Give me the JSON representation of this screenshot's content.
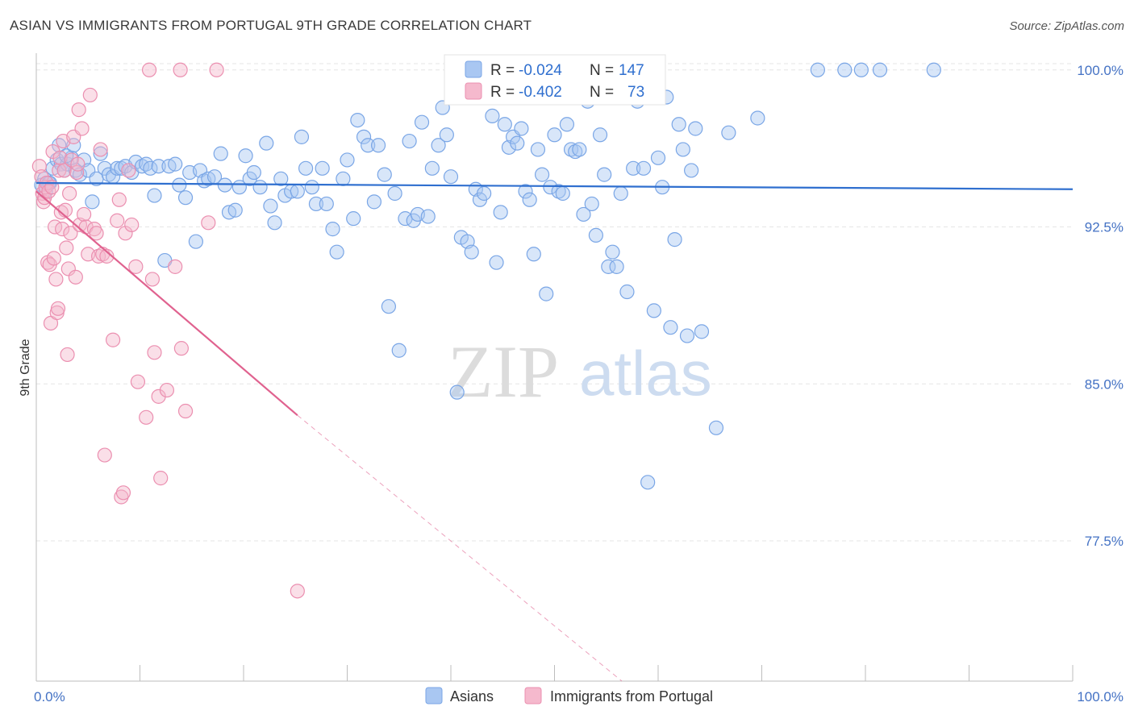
{
  "title": "ASIAN VS IMMIGRANTS FROM PORTUGAL 9TH GRADE CORRELATION CHART",
  "source": "Source: ZipAtlas.com",
  "watermark": {
    "zip": "ZIP",
    "atlas": "atlas"
  },
  "chart_data": {
    "type": "scatter",
    "ylabel": "9th Grade",
    "xlim": [
      0,
      100
    ],
    "ylim": [
      70.8,
      100.8
    ],
    "x_tick_labels": [
      "0.0%",
      "100.0%"
    ],
    "y_ticks": [
      {
        "value": 100.0,
        "label": "100.0%"
      },
      {
        "value": 92.5,
        "label": "92.5%"
      },
      {
        "value": 85.0,
        "label": "85.0%"
      },
      {
        "value": 77.5,
        "label": "77.5%"
      }
    ],
    "grid": true,
    "legend": {
      "placement": "top-center",
      "rows": [
        {
          "r_label": "R = ",
          "r_value": "-0.024",
          "n_label": "N = ",
          "n_value": "147"
        },
        {
          "r_label": "R = ",
          "r_value": "-0.402",
          "n_label": "N = ",
          "n_value": "73"
        }
      ]
    },
    "series": [
      {
        "name": "Asians",
        "color": "#7aa6e6",
        "fill": "#a9c7f2",
        "line_color": "#2f6fcf",
        "trend": {
          "x": [
            0,
            100
          ],
          "y": [
            94.6,
            94.3
          ]
        },
        "points": [
          [
            0.5,
            94.5
          ],
          [
            0.8,
            94.8
          ],
          [
            1.2,
            94.6
          ],
          [
            1.6,
            95.3
          ],
          [
            2.0,
            95.7
          ],
          [
            2.4,
            95.5
          ],
          [
            2.7,
            95.2
          ],
          [
            3.0,
            95.5
          ],
          [
            3.4,
            95.8
          ],
          [
            3.8,
            95.2
          ],
          [
            4.2,
            95.0
          ],
          [
            4.6,
            95.7
          ],
          [
            5.0,
            95.2
          ],
          [
            5.4,
            93.7
          ],
          [
            5.8,
            94.8
          ],
          [
            6.2,
            96.0
          ],
          [
            6.6,
            95.3
          ],
          [
            7.0,
            95.0
          ],
          [
            7.4,
            94.9
          ],
          [
            7.8,
            95.3
          ],
          [
            8.2,
            95.3
          ],
          [
            8.6,
            95.4
          ],
          [
            9.2,
            95.1
          ],
          [
            9.6,
            95.6
          ],
          [
            10.2,
            95.4
          ],
          [
            10.6,
            95.5
          ],
          [
            11.0,
            95.3
          ],
          [
            11.4,
            94.0
          ],
          [
            11.8,
            95.4
          ],
          [
            12.4,
            90.9
          ],
          [
            12.8,
            95.4
          ],
          [
            13.4,
            95.5
          ],
          [
            13.8,
            94.5
          ],
          [
            14.4,
            93.9
          ],
          [
            14.8,
            95.1
          ],
          [
            15.4,
            91.8
          ],
          [
            15.8,
            95.2
          ],
          [
            16.2,
            94.7
          ],
          [
            16.6,
            94.8
          ],
          [
            17.2,
            94.9
          ],
          [
            17.8,
            96.0
          ],
          [
            18.2,
            94.5
          ],
          [
            18.6,
            93.2
          ],
          [
            19.2,
            93.3
          ],
          [
            19.6,
            94.4
          ],
          [
            20.2,
            95.9
          ],
          [
            20.6,
            94.8
          ],
          [
            21.0,
            95.1
          ],
          [
            21.6,
            94.4
          ],
          [
            22.2,
            96.5
          ],
          [
            22.6,
            93.5
          ],
          [
            23.0,
            92.7
          ],
          [
            23.6,
            94.8
          ],
          [
            24.0,
            94.0
          ],
          [
            24.6,
            94.2
          ],
          [
            25.2,
            94.2
          ],
          [
            25.6,
            96.8
          ],
          [
            26.0,
            95.3
          ],
          [
            26.6,
            94.4
          ],
          [
            27.0,
            93.6
          ],
          [
            27.6,
            95.3
          ],
          [
            28.0,
            93.6
          ],
          [
            28.6,
            92.4
          ],
          [
            29.0,
            91.3
          ],
          [
            29.6,
            94.8
          ],
          [
            30.0,
            95.7
          ],
          [
            30.6,
            92.9
          ],
          [
            31.0,
            97.6
          ],
          [
            31.6,
            96.8
          ],
          [
            32.0,
            96.4
          ],
          [
            32.6,
            93.7
          ],
          [
            33.0,
            96.4
          ],
          [
            33.6,
            95.0
          ],
          [
            34.0,
            88.7
          ],
          [
            34.6,
            94.1
          ],
          [
            35.0,
            86.6
          ],
          [
            35.6,
            92.9
          ],
          [
            36.0,
            96.6
          ],
          [
            36.4,
            92.8
          ],
          [
            36.8,
            93.1
          ],
          [
            37.2,
            97.5
          ],
          [
            37.8,
            93.0
          ],
          [
            38.2,
            95.3
          ],
          [
            38.8,
            96.4
          ],
          [
            39.2,
            98.2
          ],
          [
            39.6,
            96.9
          ],
          [
            40.0,
            94.9
          ],
          [
            40.6,
            84.6
          ],
          [
            41.0,
            92.0
          ],
          [
            41.6,
            91.8
          ],
          [
            42.0,
            91.3
          ],
          [
            42.4,
            94.3
          ],
          [
            42.8,
            93.8
          ],
          [
            43.2,
            94.1
          ],
          [
            43.6,
            98.7
          ],
          [
            44.0,
            97.8
          ],
          [
            44.4,
            90.8
          ],
          [
            44.8,
            93.2
          ],
          [
            45.2,
            97.4
          ],
          [
            45.6,
            96.3
          ],
          [
            46.0,
            96.8
          ],
          [
            46.4,
            96.5
          ],
          [
            46.8,
            97.2
          ],
          [
            47.2,
            94.2
          ],
          [
            47.6,
            93.8
          ],
          [
            48.0,
            91.2
          ],
          [
            48.4,
            96.2
          ],
          [
            48.8,
            95.0
          ],
          [
            49.2,
            89.3
          ],
          [
            49.6,
            94.4
          ],
          [
            50.0,
            96.9
          ],
          [
            50.4,
            94.2
          ],
          [
            50.8,
            94.1
          ],
          [
            51.2,
            97.4
          ],
          [
            51.6,
            96.2
          ],
          [
            52.0,
            96.1
          ],
          [
            52.4,
            96.2
          ],
          [
            52.8,
            93.1
          ],
          [
            53.2,
            98.5
          ],
          [
            53.6,
            93.6
          ],
          [
            54.0,
            92.1
          ],
          [
            54.4,
            96.9
          ],
          [
            54.8,
            95.0
          ],
          [
            55.2,
            90.6
          ],
          [
            55.6,
            91.3
          ],
          [
            56.0,
            90.6
          ],
          [
            56.4,
            94.1
          ],
          [
            57.0,
            89.4
          ],
          [
            57.6,
            95.3
          ],
          [
            58.0,
            98.5
          ],
          [
            58.6,
            95.3
          ],
          [
            59.0,
            80.3
          ],
          [
            59.6,
            88.5
          ],
          [
            60.0,
            95.8
          ],
          [
            60.4,
            94.4
          ],
          [
            60.8,
            98.7
          ],
          [
            61.2,
            87.7
          ],
          [
            61.6,
            91.9
          ],
          [
            62.0,
            97.4
          ],
          [
            62.4,
            96.2
          ],
          [
            62.8,
            87.3
          ],
          [
            63.2,
            95.2
          ],
          [
            63.6,
            97.2
          ],
          [
            64.2,
            87.5
          ],
          [
            65.6,
            82.9
          ],
          [
            66.8,
            97.0
          ],
          [
            69.6,
            97.7
          ],
          [
            75.4,
            100.0
          ],
          [
            78.0,
            100.0
          ],
          [
            79.6,
            100.0
          ],
          [
            81.4,
            100.0
          ],
          [
            86.6,
            100.0
          ],
          [
            0.9,
            94.2
          ],
          [
            1.3,
            94.6
          ],
          [
            2.2,
            96.4
          ],
          [
            2.9,
            95.9
          ],
          [
            3.6,
            96.4
          ]
        ]
      },
      {
        "name": "Immigrants from Portugal",
        "color": "#eb8fb0",
        "fill": "#f5b9cd",
        "line_color": "#e0628f",
        "trend": {
          "x": [
            0,
            25.2
          ],
          "y": [
            94.2,
            83.5
          ]
        },
        "trend_dashed": {
          "x": [
            25.2,
            56.5
          ],
          "y": [
            83.5,
            70.8
          ]
        },
        "points": [
          [
            0.3,
            95.4
          ],
          [
            0.5,
            94.9
          ],
          [
            0.6,
            94.1
          ],
          [
            0.7,
            93.7
          ],
          [
            0.8,
            93.9
          ],
          [
            0.9,
            94.4
          ],
          [
            1.0,
            94.6
          ],
          [
            1.1,
            90.8
          ],
          [
            1.2,
            94.2
          ],
          [
            1.3,
            90.7
          ],
          [
            1.4,
            87.9
          ],
          [
            1.5,
            94.4
          ],
          [
            1.6,
            96.1
          ],
          [
            1.7,
            91.0
          ],
          [
            1.8,
            92.5
          ],
          [
            1.9,
            90.0
          ],
          [
            2.0,
            88.4
          ],
          [
            2.1,
            88.6
          ],
          [
            2.2,
            95.2
          ],
          [
            2.3,
            95.8
          ],
          [
            2.4,
            93.2
          ],
          [
            2.5,
            92.4
          ],
          [
            2.6,
            96.6
          ],
          [
            2.7,
            95.2
          ],
          [
            2.8,
            93.3
          ],
          [
            2.9,
            91.5
          ],
          [
            3.0,
            86.4
          ],
          [
            3.1,
            90.5
          ],
          [
            3.2,
            94.1
          ],
          [
            3.3,
            92.2
          ],
          [
            3.4,
            95.7
          ],
          [
            3.6,
            96.8
          ],
          [
            3.8,
            90.1
          ],
          [
            3.9,
            95.1
          ],
          [
            4.0,
            95.5
          ],
          [
            4.2,
            92.6
          ],
          [
            4.4,
            97.2
          ],
          [
            4.6,
            93.1
          ],
          [
            4.8,
            92.5
          ],
          [
            5.0,
            91.2
          ],
          [
            5.2,
            98.8
          ],
          [
            5.6,
            92.4
          ],
          [
            5.8,
            92.2
          ],
          [
            6.0,
            91.1
          ],
          [
            6.2,
            96.2
          ],
          [
            6.4,
            91.2
          ],
          [
            6.6,
            81.6
          ],
          [
            6.8,
            91.1
          ],
          [
            7.4,
            87.1
          ],
          [
            7.8,
            92.8
          ],
          [
            8.0,
            93.8
          ],
          [
            8.2,
            79.6
          ],
          [
            8.4,
            79.8
          ],
          [
            8.6,
            92.2
          ],
          [
            8.9,
            95.2
          ],
          [
            9.2,
            92.6
          ],
          [
            9.6,
            90.6
          ],
          [
            9.8,
            85.1
          ],
          [
            10.6,
            83.4
          ],
          [
            11.2,
            90.0
          ],
          [
            11.4,
            86.5
          ],
          [
            11.8,
            84.4
          ],
          [
            12.0,
            80.5
          ],
          [
            12.6,
            84.7
          ],
          [
            13.4,
            90.6
          ],
          [
            14.0,
            86.7
          ],
          [
            14.4,
            83.7
          ],
          [
            16.6,
            92.7
          ],
          [
            17.4,
            100.0
          ],
          [
            10.9,
            100.0
          ],
          [
            13.9,
            100.0
          ],
          [
            25.2,
            75.1
          ],
          [
            4.1,
            98.1
          ]
        ]
      }
    ]
  },
  "bottom_legend": [
    "Asians",
    "Immigrants from Portugal"
  ]
}
